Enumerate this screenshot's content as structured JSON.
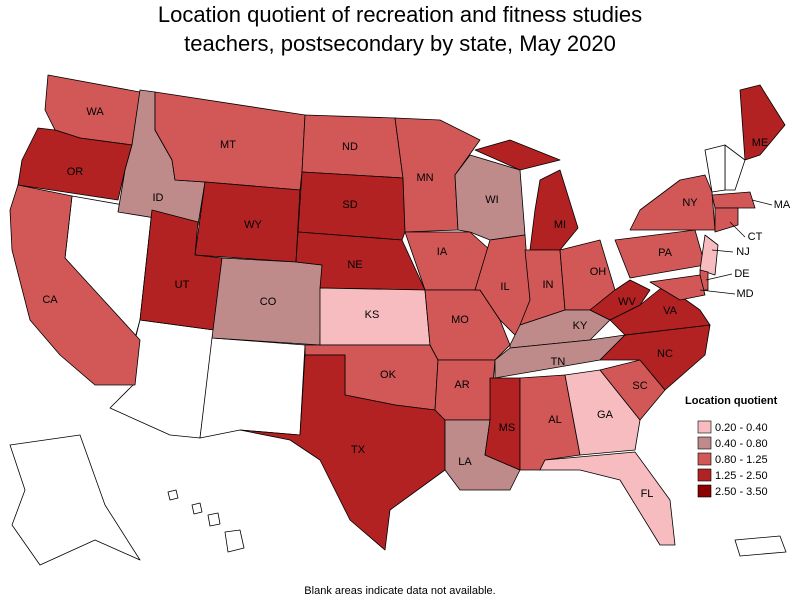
{
  "title": "Location quotient of recreation and fitness studies teachers, postsecondary by state, May 2020",
  "legend": {
    "title": "Location quotient",
    "items": [
      {
        "label": "0.20 - 0.40",
        "color": "#f6bcc0"
      },
      {
        "label": "0.40 - 0.80",
        "color": "#bf8a8a"
      },
      {
        "label": "0.80 - 1.25",
        "color": "#d25858"
      },
      {
        "label": "1.25 - 2.50",
        "color": "#b22222"
      },
      {
        "label": "2.50 - 3.50",
        "color": "#8b0000"
      }
    ]
  },
  "states": [
    {
      "abbr": "WA",
      "range": "0.80 - 1.25"
    },
    {
      "abbr": "OR",
      "range": "1.25 - 2.50"
    },
    {
      "abbr": "CA",
      "range": "0.80 - 1.25"
    },
    {
      "abbr": "ID",
      "range": "0.40 - 0.80"
    },
    {
      "abbr": "MT",
      "range": "0.80 - 1.25"
    },
    {
      "abbr": "WY",
      "range": "1.25 - 2.50"
    },
    {
      "abbr": "UT",
      "range": "1.25 - 2.50"
    },
    {
      "abbr": "CO",
      "range": "0.40 - 0.80"
    },
    {
      "abbr": "ND",
      "range": "0.80 - 1.25"
    },
    {
      "abbr": "SD",
      "range": "1.25 - 2.50"
    },
    {
      "abbr": "NE",
      "range": "1.25 - 2.50"
    },
    {
      "abbr": "KS",
      "range": "0.20 - 0.40"
    },
    {
      "abbr": "OK",
      "range": "0.80 - 1.25"
    },
    {
      "abbr": "TX",
      "range": "1.25 - 2.50"
    },
    {
      "abbr": "MN",
      "range": "0.80 - 1.25"
    },
    {
      "abbr": "IA",
      "range": "0.80 - 1.25"
    },
    {
      "abbr": "MO",
      "range": "0.80 - 1.25"
    },
    {
      "abbr": "AR",
      "range": "0.80 - 1.25"
    },
    {
      "abbr": "LA",
      "range": "0.40 - 0.80"
    },
    {
      "abbr": "WI",
      "range": "0.40 - 0.80"
    },
    {
      "abbr": "IL",
      "range": "0.80 - 1.25"
    },
    {
      "abbr": "MI",
      "range": "1.25 - 2.50"
    },
    {
      "abbr": "IN",
      "range": "0.80 - 1.25"
    },
    {
      "abbr": "OH",
      "range": "0.80 - 1.25"
    },
    {
      "abbr": "KY",
      "range": "0.40 - 0.80"
    },
    {
      "abbr": "TN",
      "range": "0.40 - 0.80"
    },
    {
      "abbr": "MS",
      "range": "1.25 - 2.50"
    },
    {
      "abbr": "AL",
      "range": "0.80 - 1.25"
    },
    {
      "abbr": "GA",
      "range": "0.20 - 0.40"
    },
    {
      "abbr": "FL",
      "range": "0.20 - 0.40"
    },
    {
      "abbr": "SC",
      "range": "0.80 - 1.25"
    },
    {
      "abbr": "NC",
      "range": "1.25 - 2.50"
    },
    {
      "abbr": "VA",
      "range": "1.25 - 2.50"
    },
    {
      "abbr": "WV",
      "range": "1.25 - 2.50"
    },
    {
      "abbr": "PA",
      "range": "0.80 - 1.25"
    },
    {
      "abbr": "NY",
      "range": "0.80 - 1.25"
    },
    {
      "abbr": "ME",
      "range": "1.25 - 2.50"
    },
    {
      "abbr": "MA",
      "range": "0.80 - 1.25"
    },
    {
      "abbr": "CT",
      "range": "0.80 - 1.25"
    },
    {
      "abbr": "NJ",
      "range": "0.20 - 0.40"
    },
    {
      "abbr": "DE",
      "range": "0.80 - 1.25"
    },
    {
      "abbr": "MD",
      "range": "0.80 - 1.25"
    }
  ],
  "footnote": "Blank areas indicate data not available."
}
